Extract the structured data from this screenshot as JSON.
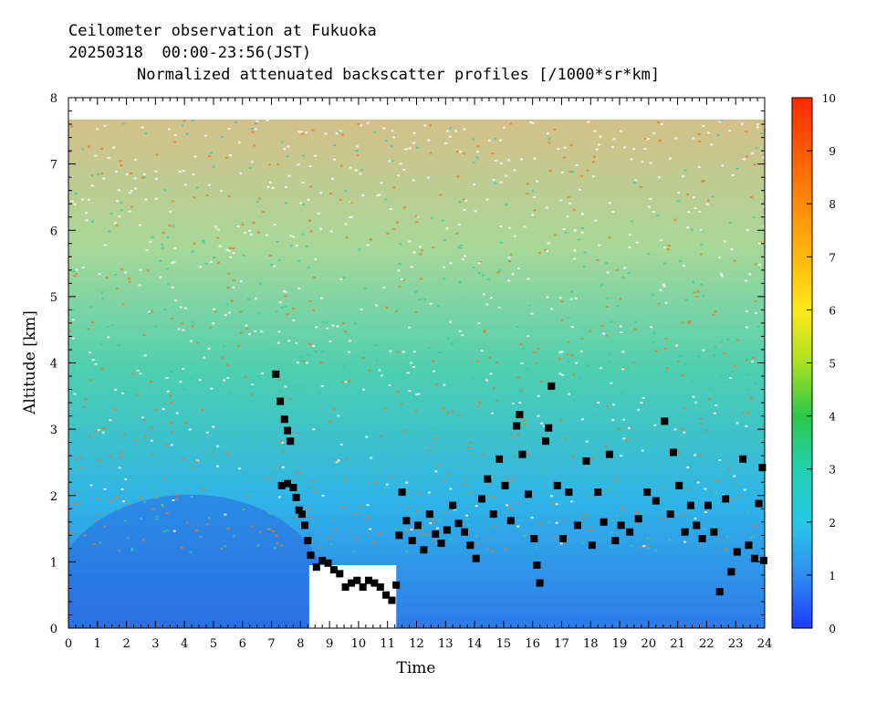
{
  "header": {
    "line1": "Ceilometer observation at Fukuoka",
    "line2": "20250318  00:00-23:56(JST)",
    "line3": "Normalized attenuated backscatter profiles [/1000*sr*km]"
  },
  "chart_data": {
    "type": "heatmap",
    "title": "Normalized attenuated backscatter profiles [/1000*sr*km]",
    "xlabel": "Time",
    "ylabel": "Altitude [km]",
    "xlim": [
      0,
      24
    ],
    "ylim": [
      0,
      8
    ],
    "x_ticks": [
      "0",
      "1",
      "2",
      "3",
      "4",
      "5",
      "6",
      "7",
      "8",
      "9",
      "10",
      "11",
      "12",
      "13",
      "14",
      "15",
      "16",
      "17",
      "18",
      "19",
      "20",
      "21",
      "22",
      "23",
      "24"
    ],
    "y_ticks": [
      "0",
      "1",
      "2",
      "3",
      "4",
      "5",
      "6",
      "7",
      "8"
    ],
    "colorbar": {
      "range": [
        0,
        10
      ],
      "ticks": [
        "0",
        "1",
        "2",
        "3",
        "4",
        "5",
        "6",
        "7",
        "8",
        "9",
        "10"
      ],
      "colors": [
        "#1e3cff",
        "#2f8cf0",
        "#28c8e8",
        "#22d0b0",
        "#2cc84a",
        "#a8e020",
        "#ffe81a",
        "#ffb80a",
        "#ff8a06",
        "#ff5a04",
        "#ff2a00"
      ]
    },
    "data_top_altitude_km": 7.67,
    "cloud_base_markers": [
      {
        "x": 7.15,
        "y": 3.83
      },
      {
        "x": 7.3,
        "y": 3.42
      },
      {
        "x": 7.45,
        "y": 3.15
      },
      {
        "x": 7.55,
        "y": 2.98
      },
      {
        "x": 7.65,
        "y": 2.82
      },
      {
        "x": 7.35,
        "y": 2.15
      },
      {
        "x": 7.55,
        "y": 2.18
      },
      {
        "x": 7.75,
        "y": 2.12
      },
      {
        "x": 7.85,
        "y": 1.97
      },
      {
        "x": 7.95,
        "y": 1.78
      },
      {
        "x": 8.05,
        "y": 1.72
      },
      {
        "x": 8.15,
        "y": 1.55
      },
      {
        "x": 8.25,
        "y": 1.32
      },
      {
        "x": 8.35,
        "y": 1.1
      },
      {
        "x": 8.55,
        "y": 0.92
      },
      {
        "x": 8.75,
        "y": 1.02
      },
      {
        "x": 8.95,
        "y": 0.98
      },
      {
        "x": 9.15,
        "y": 0.88
      },
      {
        "x": 9.35,
        "y": 0.82
      },
      {
        "x": 9.55,
        "y": 0.62
      },
      {
        "x": 9.75,
        "y": 0.68
      },
      {
        "x": 9.95,
        "y": 0.72
      },
      {
        "x": 10.15,
        "y": 0.62
      },
      {
        "x": 10.35,
        "y": 0.72
      },
      {
        "x": 10.55,
        "y": 0.68
      },
      {
        "x": 10.75,
        "y": 0.62
      },
      {
        "x": 10.95,
        "y": 0.5
      },
      {
        "x": 11.15,
        "y": 0.42
      },
      {
        "x": 11.3,
        "y": 0.65
      },
      {
        "x": 11.4,
        "y": 1.4
      },
      {
        "x": 11.5,
        "y": 2.05
      },
      {
        "x": 11.65,
        "y": 1.62
      },
      {
        "x": 11.85,
        "y": 1.32
      },
      {
        "x": 12.05,
        "y": 1.55
      },
      {
        "x": 12.25,
        "y": 1.18
      },
      {
        "x": 12.45,
        "y": 1.72
      },
      {
        "x": 12.65,
        "y": 1.42
      },
      {
        "x": 12.85,
        "y": 1.28
      },
      {
        "x": 13.05,
        "y": 1.48
      },
      {
        "x": 13.25,
        "y": 1.85
      },
      {
        "x": 13.45,
        "y": 1.58
      },
      {
        "x": 13.65,
        "y": 1.45
      },
      {
        "x": 13.85,
        "y": 1.25
      },
      {
        "x": 14.05,
        "y": 1.05
      },
      {
        "x": 14.25,
        "y": 1.95
      },
      {
        "x": 14.45,
        "y": 2.25
      },
      {
        "x": 14.65,
        "y": 1.72
      },
      {
        "x": 14.85,
        "y": 2.55
      },
      {
        "x": 15.05,
        "y": 2.15
      },
      {
        "x": 15.25,
        "y": 1.62
      },
      {
        "x": 15.45,
        "y": 3.05
      },
      {
        "x": 15.55,
        "y": 3.22
      },
      {
        "x": 15.65,
        "y": 2.62
      },
      {
        "x": 15.85,
        "y": 2.02
      },
      {
        "x": 16.05,
        "y": 1.35
      },
      {
        "x": 16.15,
        "y": 0.95
      },
      {
        "x": 16.25,
        "y": 0.68
      },
      {
        "x": 16.45,
        "y": 2.82
      },
      {
        "x": 16.55,
        "y": 3.02
      },
      {
        "x": 16.65,
        "y": 3.65
      },
      {
        "x": 16.85,
        "y": 2.15
      },
      {
        "x": 17.05,
        "y": 1.35
      },
      {
        "x": 17.25,
        "y": 2.05
      },
      {
        "x": 17.55,
        "y": 1.55
      },
      {
        "x": 17.85,
        "y": 2.52
      },
      {
        "x": 18.05,
        "y": 1.25
      },
      {
        "x": 18.25,
        "y": 2.05
      },
      {
        "x": 18.45,
        "y": 1.6
      },
      {
        "x": 18.65,
        "y": 2.62
      },
      {
        "x": 18.85,
        "y": 1.32
      },
      {
        "x": 19.05,
        "y": 1.55
      },
      {
        "x": 19.35,
        "y": 1.45
      },
      {
        "x": 19.65,
        "y": 1.65
      },
      {
        "x": 19.95,
        "y": 2.05
      },
      {
        "x": 20.25,
        "y": 1.92
      },
      {
        "x": 20.55,
        "y": 3.12
      },
      {
        "x": 20.75,
        "y": 1.72
      },
      {
        "x": 20.85,
        "y": 2.65
      },
      {
        "x": 21.05,
        "y": 2.15
      },
      {
        "x": 21.25,
        "y": 1.45
      },
      {
        "x": 21.45,
        "y": 1.85
      },
      {
        "x": 21.65,
        "y": 1.55
      },
      {
        "x": 21.85,
        "y": 1.35
      },
      {
        "x": 22.05,
        "y": 1.85
      },
      {
        "x": 22.25,
        "y": 1.45
      },
      {
        "x": 22.45,
        "y": 0.55
      },
      {
        "x": 22.65,
        "y": 1.95
      },
      {
        "x": 22.85,
        "y": 0.85
      },
      {
        "x": 23.05,
        "y": 1.15
      },
      {
        "x": 23.25,
        "y": 2.55
      },
      {
        "x": 23.45,
        "y": 1.25
      },
      {
        "x": 23.65,
        "y": 1.05
      },
      {
        "x": 23.8,
        "y": 1.88
      },
      {
        "x": 23.92,
        "y": 2.42
      },
      {
        "x": 23.97,
        "y": 1.02
      }
    ]
  }
}
